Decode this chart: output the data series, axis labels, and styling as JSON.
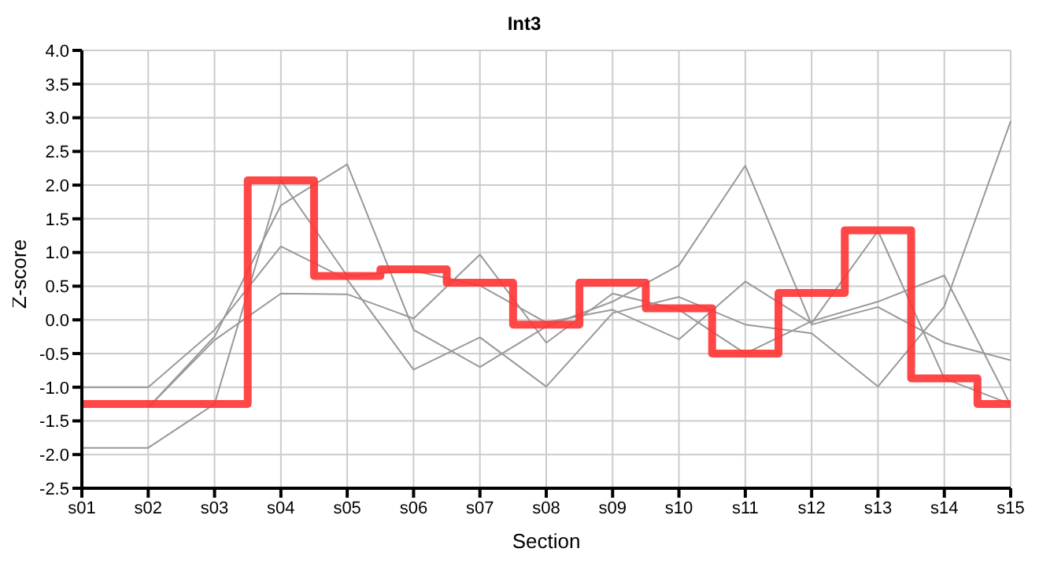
{
  "chart_data": {
    "type": "line",
    "title": "Int3",
    "xlabel": "Section",
    "ylabel": "Z-score",
    "categories": [
      "s01",
      "s02",
      "s03",
      "s04",
      "s05",
      "s06",
      "s07",
      "s08",
      "s09",
      "s10",
      "s11",
      "s12",
      "s13",
      "s14",
      "s15"
    ],
    "series": [
      {
        "color": "#999999",
        "values": [
          -1.0,
          -1.0,
          -0.15,
          1.09,
          0.6,
          -0.74,
          -0.26,
          -0.99,
          0.1,
          0.34,
          -0.07,
          -0.2,
          -0.99,
          0.2,
          2.95
        ]
      },
      {
        "color": "#999999",
        "values": [
          null,
          -1.3,
          -0.25,
          1.7,
          2.31,
          -0.15,
          -0.7,
          -0.1,
          0.27,
          0.81,
          2.29,
          -0.07,
          0.19,
          -0.34,
          -0.6
        ]
      },
      {
        "color": "#999999",
        "values": [
          null,
          -1.3,
          -0.3,
          0.39,
          0.38,
          0.02,
          0.97,
          -0.34,
          0.39,
          0.15,
          -0.5,
          -0.02,
          0.27,
          0.66,
          -1.27
        ]
      },
      {
        "color": "#999999",
        "values": [
          -1.9,
          -1.9,
          -1.25,
          2.07,
          0.65,
          0.73,
          0.51,
          -0.04,
          0.15,
          -0.29,
          0.57,
          -0.05,
          1.32,
          -0.87,
          -1.25
        ]
      },
      {
        "type": "step",
        "color": "#ff3333",
        "values": [
          -1.25,
          -1.25,
          -1.25,
          2.07,
          0.65,
          0.75,
          0.55,
          -0.07,
          0.55,
          0.17,
          -0.5,
          0.4,
          1.33,
          -0.87,
          -1.25
        ]
      }
    ],
    "ylim": [
      -2.5,
      4.0
    ],
    "yticks": [
      {
        "value": -2.5,
        "label": "-2.5"
      },
      {
        "value": -2,
        "label": "-2.0"
      },
      {
        "value": -1.5,
        "label": "-1.5"
      },
      {
        "value": -1,
        "label": "-1.0"
      },
      {
        "value": -0.5,
        "label": "-0.5"
      },
      {
        "value": 0,
        "label": "0.0"
      },
      {
        "value": 0.5,
        "label": "0.5"
      },
      {
        "value": 1,
        "label": "1.0"
      },
      {
        "value": 1.5,
        "label": "1.5"
      },
      {
        "value": 2,
        "label": "2.0"
      },
      {
        "value": 2.5,
        "label": "2.5"
      },
      {
        "value": 3,
        "label": "3.0"
      },
      {
        "value": 3.5,
        "label": "3.5"
      },
      {
        "value": 4,
        "label": "4.0"
      }
    ],
    "grid": true,
    "legend": false,
    "marker": "none",
    "line_style": "solid"
  }
}
